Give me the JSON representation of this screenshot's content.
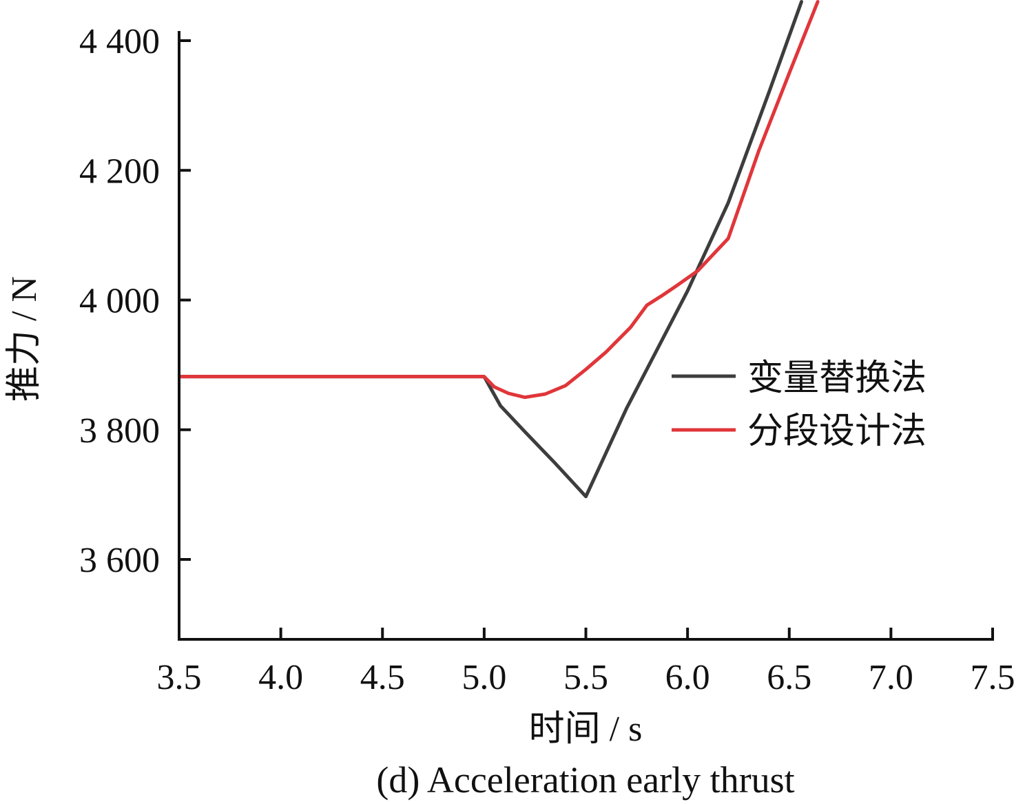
{
  "chart_data": {
    "type": "line",
    "title": "",
    "caption": "(d) Acceleration early thrust",
    "xlabel": "时间 / s",
    "ylabel": "推力 / N",
    "xlim": [
      3.5,
      7.5
    ],
    "ylim": [
      3490,
      4460
    ],
    "x_ticks": [
      3.5,
      4.0,
      4.5,
      5.0,
      5.5,
      6.0,
      6.5,
      7.0,
      7.5
    ],
    "x_tick_labels": [
      "3.5",
      "4.0",
      "4.5",
      "5.0",
      "5.5",
      "6.0",
      "6.5",
      "7.0",
      "7.5"
    ],
    "y_ticks": [
      3600,
      3800,
      4000,
      4200,
      4400
    ],
    "y_tick_labels": [
      "3 600",
      "3 800",
      "4 000",
      "4 200",
      "4 400"
    ],
    "grid": false,
    "legend_position": "right",
    "series": [
      {
        "name": "变量替换法",
        "color": "#3d3d3d",
        "points": [
          [
            3.5,
            3882
          ],
          [
            5.0,
            3882
          ],
          [
            5.08,
            3837
          ],
          [
            5.2,
            3797
          ],
          [
            5.35,
            3748
          ],
          [
            5.5,
            3697
          ],
          [
            5.7,
            3833
          ],
          [
            6.0,
            4014
          ],
          [
            6.2,
            4150
          ],
          [
            6.4,
            4320
          ],
          [
            6.56,
            4460
          ]
        ]
      },
      {
        "name": "分段设计法",
        "color": "#e0363a",
        "points": [
          [
            3.5,
            3882
          ],
          [
            5.0,
            3882
          ],
          [
            5.05,
            3866
          ],
          [
            5.12,
            3856
          ],
          [
            5.2,
            3850
          ],
          [
            5.3,
            3855
          ],
          [
            5.4,
            3868
          ],
          [
            5.5,
            3893
          ],
          [
            5.6,
            3920
          ],
          [
            5.72,
            3958
          ],
          [
            5.8,
            3992
          ],
          [
            5.88,
            4008
          ],
          [
            5.95,
            4023
          ],
          [
            6.05,
            4045
          ],
          [
            6.2,
            4095
          ],
          [
            6.35,
            4230
          ],
          [
            6.5,
            4350
          ],
          [
            6.64,
            4460
          ]
        ]
      }
    ]
  }
}
